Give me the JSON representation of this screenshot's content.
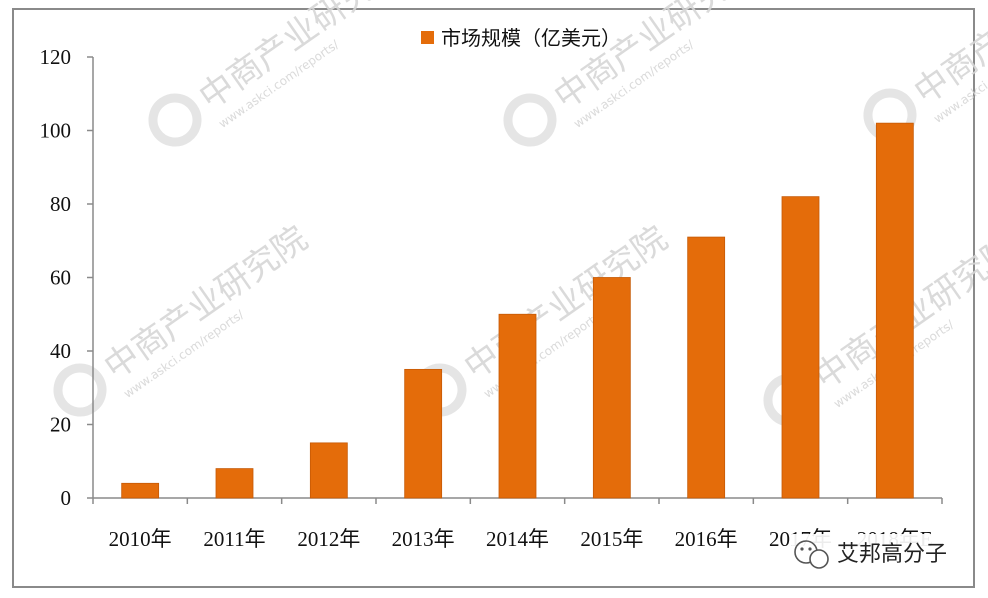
{
  "chart_data": {
    "type": "bar",
    "title": "",
    "xlabel": "",
    "ylabel": "",
    "categories": [
      "2010年",
      "2011年",
      "2012年",
      "2013年",
      "2014年",
      "2015年",
      "2016年",
      "2017年",
      "2018年E"
    ],
    "series": [
      {
        "name": "市场规模（亿美元）",
        "values": [
          4,
          8,
          15,
          35,
          50,
          60,
          71,
          82,
          102
        ],
        "color": "#E46C0A"
      }
    ],
    "ylim": [
      0,
      120
    ],
    "yticks": [
      0,
      20,
      40,
      60,
      80,
      100,
      120
    ],
    "grid": false,
    "legend_position": "top-center"
  },
  "watermark": {
    "brand": "中商产业研究院",
    "url": "www.askci.com/reports/"
  },
  "overlay_badge": {
    "text": "艾邦高分子",
    "icon": "wechat-icon"
  },
  "colors": {
    "bar": "#E46C0A",
    "axis": "#8a8a8a",
    "watermark": "#d6d6d6"
  }
}
